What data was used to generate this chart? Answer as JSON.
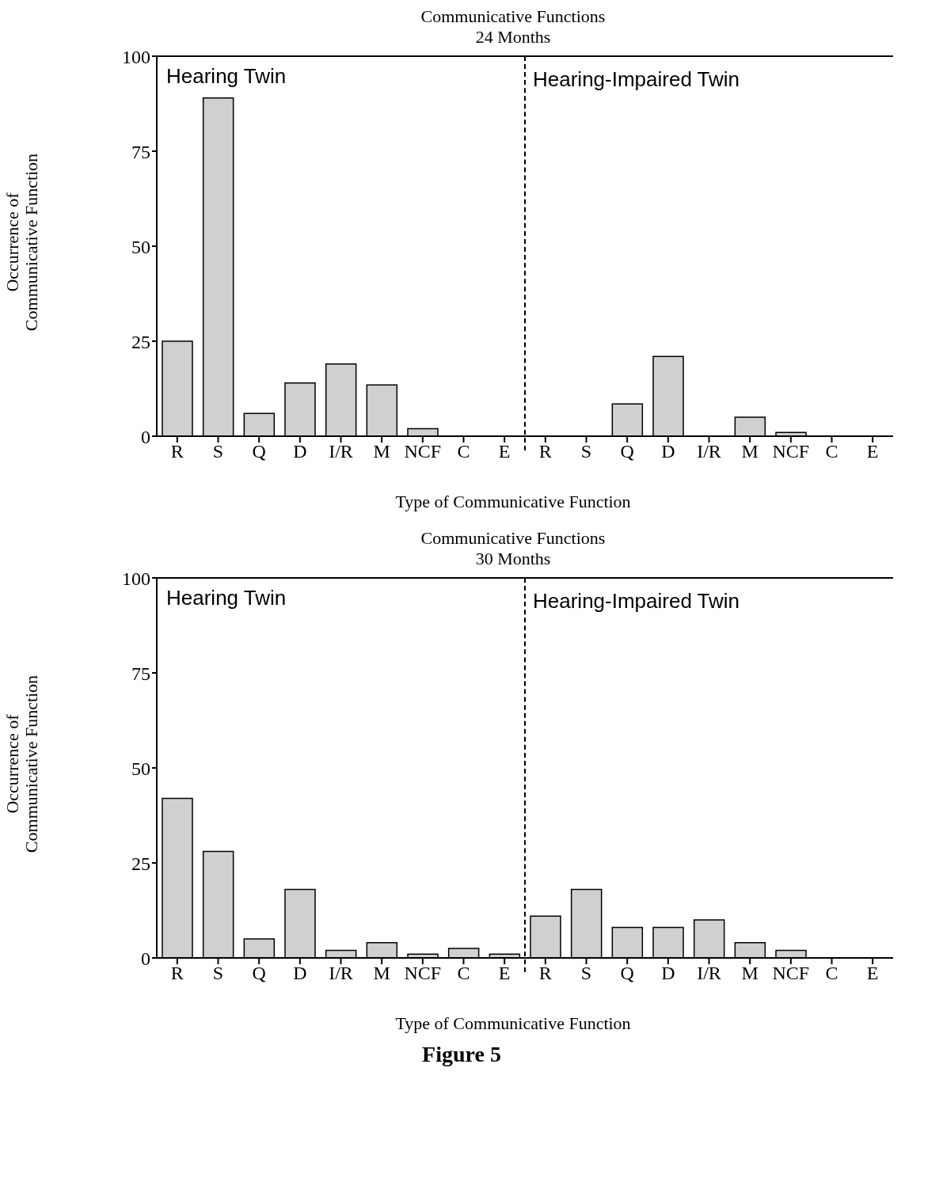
{
  "chart_data": [
    {
      "type": "bar",
      "title": "Communicative Functions\n24 Months",
      "xlabel": "Type of Communicative Function",
      "ylabel": "Occurrence of\nCommunicative Function",
      "categories": [
        "R",
        "S",
        "Q",
        "D",
        "I/R",
        "M",
        "NCF",
        "C",
        "E",
        "R",
        "S",
        "Q",
        "D",
        "I/R",
        "M",
        "NCF",
        "C",
        "E"
      ],
      "values": [
        25,
        89,
        6,
        14,
        19,
        13.5,
        2,
        0,
        0,
        0,
        0,
        8.5,
        21,
        0,
        5,
        1,
        0,
        0
      ],
      "color": "#d0d0d0",
      "ylim": [
        0,
        100
      ],
      "yticks": [
        0,
        25,
        50,
        75,
        100
      ],
      "grid": false,
      "legend": false,
      "annotations": [
        "Hearing  Twin",
        "Hearing-Impaired  Twin"
      ]
    },
    {
      "type": "bar",
      "title": "Communicative Functions\n30 Months",
      "xlabel": "Type of Communicative Function",
      "ylabel": "Occurrence of\nCommunicative Function",
      "categories": [
        "R",
        "S",
        "Q",
        "D",
        "I/R",
        "M",
        "NCF",
        "C",
        "E",
        "R",
        "S",
        "Q",
        "D",
        "I/R",
        "M",
        "NCF",
        "C",
        "E"
      ],
      "values": [
        42,
        28,
        5,
        18,
        2,
        4,
        1,
        2.5,
        1,
        11,
        18,
        8,
        8,
        10,
        4,
        2,
        0,
        0
      ],
      "color": "#d0d0d0",
      "ylim": [
        0,
        100
      ],
      "yticks": [
        0,
        25,
        50,
        75,
        100
      ],
      "grid": false,
      "legend": false,
      "annotations": [
        "Hearing  Twin",
        "Hearing-Impaired  Twin",
        "Figure 5"
      ]
    }
  ]
}
